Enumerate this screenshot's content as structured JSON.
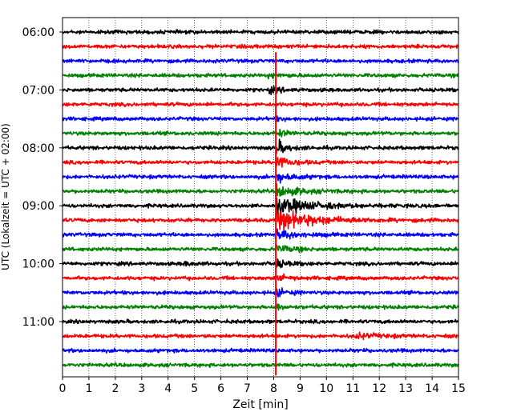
{
  "chart_data": {
    "type": "line",
    "title": "",
    "xlabel": "Zeit  [min]",
    "ylabel": "UTC (Lokalzeit = UTC + 02:00)",
    "xlim": [
      0,
      15
    ],
    "x_ticks": [
      "0",
      "1",
      "2",
      "3",
      "4",
      "5",
      "6",
      "7",
      "8",
      "9",
      "10",
      "11",
      "12",
      "13",
      "14",
      "15"
    ],
    "y_ticks": [
      "06:00",
      "07:00",
      "08:00",
      "09:00",
      "10:00",
      "11:00"
    ],
    "grid": "vertical dotted at each minute",
    "trace_interval_minutes": 15,
    "trace_count": 24,
    "trace_start_times": [
      "06:00",
      "06:15",
      "06:30",
      "06:45",
      "07:00",
      "07:15",
      "07:30",
      "07:45",
      "08:00",
      "08:15",
      "08:30",
      "08:45",
      "09:00",
      "09:15",
      "09:30",
      "09:45",
      "10:00",
      "10:15",
      "10:30",
      "10:45",
      "11:00",
      "11:15",
      "11:30",
      "11:45"
    ],
    "series_colors": [
      "#000000",
      "#ff0000",
      "#0000ff",
      "#008000"
    ],
    "events": [
      {
        "trace_start": "06:45",
        "minute": 7.8,
        "amplitude": 0.4,
        "duration": 0.8
      },
      {
        "trace_start": "07:00",
        "minute": 7.8,
        "amplitude": 0.8,
        "duration": 0.5
      },
      {
        "trace_start": "07:30",
        "minute": 8.1,
        "amplitude": 0.5,
        "duration": 0.3
      },
      {
        "trace_start": "07:45",
        "minute": 8.1,
        "amplitude": 1.5,
        "duration": 0.3
      },
      {
        "trace_start": "08:00",
        "minute": 8.1,
        "amplitude": 2.2,
        "duration": 0.4
      },
      {
        "trace_start": "08:15",
        "minute": 8.1,
        "amplitude": 2.0,
        "duration": 0.5
      },
      {
        "trace_start": "08:30",
        "minute": 8.1,
        "amplitude": 1.5,
        "duration": 0.6
      },
      {
        "trace_start": "08:45",
        "minute": 8.1,
        "amplitude": 1.8,
        "duration": 0.8
      },
      {
        "trace_start": "09:00",
        "minute": 8.1,
        "amplitude": 2.8,
        "duration": 1.2
      },
      {
        "trace_start": "09:15",
        "minute": 8.1,
        "amplitude": 3.2,
        "duration": 1.4
      },
      {
        "trace_start": "09:30",
        "minute": 8.1,
        "amplitude": 1.5,
        "duration": 0.8
      },
      {
        "trace_start": "09:45",
        "minute": 8.1,
        "amplitude": 1.2,
        "duration": 0.6
      },
      {
        "trace_start": "10:00",
        "minute": 4.6,
        "amplitude": 0.5,
        "duration": 0.4
      },
      {
        "trace_start": "10:00",
        "minute": 8.1,
        "amplitude": 1.3,
        "duration": 0.4
      },
      {
        "trace_start": "10:15",
        "minute": 8.1,
        "amplitude": 1.3,
        "duration": 0.4
      },
      {
        "trace_start": "10:30",
        "minute": 8.1,
        "amplitude": 1.2,
        "duration": 0.4
      },
      {
        "trace_start": "10:45",
        "minute": 8.1,
        "amplitude": 0.9,
        "duration": 0.3
      },
      {
        "trace_start": "11:15",
        "minute": 11.1,
        "amplitude": 0.8,
        "duration": 0.8
      }
    ],
    "marker": {
      "minute": 8.08,
      "color": "#ff0000",
      "from_trace": "06:30",
      "to_trace": "11:45"
    }
  }
}
